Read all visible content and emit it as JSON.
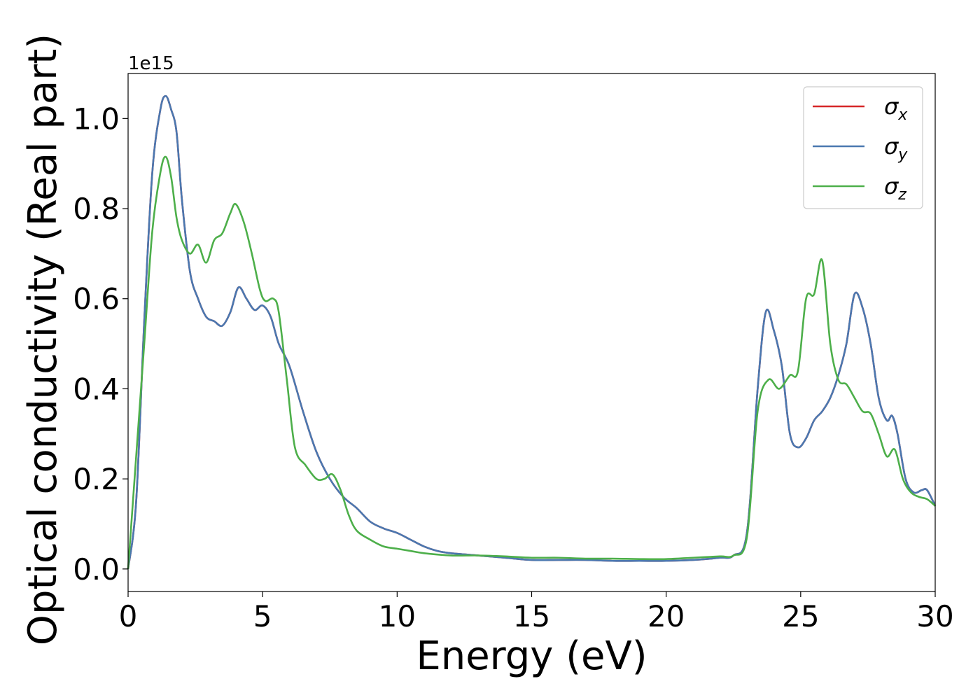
{
  "chart_data": {
    "type": "line",
    "xlabel": "Energy (eV)",
    "ylabel": "Optical conductivity (Real part)",
    "y_offset_label": "1e15",
    "y_scale": 1000000000000000.0,
    "xlim": [
      0,
      30
    ],
    "ylim": [
      -0.05,
      1.1
    ],
    "x_ticks": [
      0,
      5,
      10,
      15,
      20,
      25,
      30
    ],
    "x_tick_labels": [
      "0",
      "5",
      "10",
      "15",
      "20",
      "25",
      "30"
    ],
    "y_ticks": [
      0.0,
      0.2,
      0.4,
      0.6,
      0.8,
      1.0
    ],
    "y_tick_labels": [
      "0.0",
      "0.2",
      "0.4",
      "0.6",
      "0.8",
      "1.0"
    ],
    "grid": false,
    "legend_position": "top-right",
    "series": [
      {
        "name": "σx",
        "symbol": "σ",
        "subscript": "x",
        "color": "#d62728",
        "x": [
          0,
          0.3,
          0.6,
          0.9,
          1.2,
          1.4,
          1.6,
          1.8,
          2.0,
          2.3,
          2.6,
          2.9,
          3.2,
          3.5,
          3.8,
          4.1,
          4.4,
          4.7,
          5.0,
          5.3,
          5.6,
          6.0,
          6.5,
          7.0,
          7.5,
          8.0,
          8.5,
          9.0,
          9.5,
          10.0,
          10.5,
          11.0,
          11.5,
          12.0,
          13.0,
          14.0,
          15.0,
          16.0,
          17.0,
          18.0,
          19.0,
          20.0,
          21.0,
          22.0,
          22.5,
          23.0,
          23.4,
          23.7,
          24.0,
          24.3,
          24.6,
          24.9,
          25.2,
          25.5,
          25.8,
          26.1,
          26.4,
          26.7,
          27.0,
          27.3,
          27.6,
          27.9,
          28.2,
          28.4,
          28.6,
          28.9,
          29.2,
          29.5,
          29.7,
          30.0
        ],
        "y": [
          0.0,
          0.15,
          0.55,
          0.88,
          1.02,
          1.05,
          1.02,
          0.97,
          0.82,
          0.66,
          0.6,
          0.56,
          0.55,
          0.54,
          0.57,
          0.625,
          0.6,
          0.575,
          0.585,
          0.56,
          0.5,
          0.45,
          0.35,
          0.26,
          0.2,
          0.16,
          0.135,
          0.105,
          0.09,
          0.08,
          0.065,
          0.05,
          0.04,
          0.035,
          0.03,
          0.025,
          0.02,
          0.02,
          0.02,
          0.018,
          0.018,
          0.018,
          0.02,
          0.025,
          0.03,
          0.08,
          0.4,
          0.57,
          0.53,
          0.45,
          0.3,
          0.27,
          0.29,
          0.33,
          0.35,
          0.38,
          0.43,
          0.5,
          0.61,
          0.58,
          0.5,
          0.38,
          0.33,
          0.34,
          0.3,
          0.2,
          0.17,
          0.175,
          0.175,
          0.14
        ]
      },
      {
        "name": "σy",
        "symbol": "σ",
        "subscript": "y",
        "color": "#4a78b0",
        "x": [
          0,
          0.3,
          0.6,
          0.9,
          1.2,
          1.4,
          1.6,
          1.8,
          2.0,
          2.3,
          2.6,
          2.9,
          3.2,
          3.5,
          3.8,
          4.1,
          4.4,
          4.7,
          5.0,
          5.3,
          5.6,
          6.0,
          6.5,
          7.0,
          7.5,
          8.0,
          8.5,
          9.0,
          9.5,
          10.0,
          10.5,
          11.0,
          11.5,
          12.0,
          13.0,
          14.0,
          15.0,
          16.0,
          17.0,
          18.0,
          19.0,
          20.0,
          21.0,
          22.0,
          22.5,
          23.0,
          23.4,
          23.7,
          24.0,
          24.3,
          24.6,
          24.9,
          25.2,
          25.5,
          25.8,
          26.1,
          26.4,
          26.7,
          27.0,
          27.3,
          27.6,
          27.9,
          28.2,
          28.4,
          28.6,
          28.9,
          29.2,
          29.5,
          29.7,
          30.0
        ],
        "y": [
          0.0,
          0.15,
          0.55,
          0.88,
          1.02,
          1.05,
          1.02,
          0.97,
          0.82,
          0.66,
          0.6,
          0.56,
          0.55,
          0.54,
          0.57,
          0.625,
          0.6,
          0.575,
          0.585,
          0.56,
          0.5,
          0.45,
          0.35,
          0.26,
          0.2,
          0.16,
          0.135,
          0.105,
          0.09,
          0.08,
          0.065,
          0.05,
          0.04,
          0.035,
          0.03,
          0.025,
          0.02,
          0.02,
          0.02,
          0.018,
          0.018,
          0.018,
          0.02,
          0.025,
          0.03,
          0.08,
          0.4,
          0.57,
          0.53,
          0.45,
          0.3,
          0.27,
          0.29,
          0.33,
          0.35,
          0.38,
          0.43,
          0.5,
          0.61,
          0.58,
          0.5,
          0.38,
          0.33,
          0.34,
          0.3,
          0.2,
          0.17,
          0.175,
          0.175,
          0.14
        ]
      },
      {
        "name": "σz",
        "symbol": "σ",
        "subscript": "z",
        "color": "#4daf4a",
        "x": [
          0,
          0.3,
          0.6,
          0.9,
          1.2,
          1.4,
          1.6,
          1.8,
          2.0,
          2.3,
          2.6,
          2.9,
          3.2,
          3.5,
          3.8,
          4.0,
          4.3,
          4.6,
          4.9,
          5.1,
          5.4,
          5.6,
          5.9,
          6.2,
          6.6,
          7.0,
          7.3,
          7.6,
          7.9,
          8.2,
          8.5,
          9.0,
          9.5,
          10.0,
          10.5,
          11.0,
          12.0,
          13.0,
          14.0,
          15.0,
          16.0,
          17.0,
          18.0,
          19.0,
          20.0,
          21.0,
          22.0,
          22.5,
          23.0,
          23.4,
          23.8,
          24.2,
          24.6,
          24.9,
          25.2,
          25.5,
          25.8,
          26.1,
          26.4,
          26.7,
          27.0,
          27.3,
          27.6,
          27.9,
          28.2,
          28.5,
          28.8,
          29.1,
          29.4,
          29.7,
          30.0
        ],
        "y": [
          0.0,
          0.25,
          0.5,
          0.75,
          0.88,
          0.915,
          0.87,
          0.78,
          0.73,
          0.7,
          0.72,
          0.68,
          0.73,
          0.745,
          0.79,
          0.81,
          0.77,
          0.7,
          0.62,
          0.595,
          0.6,
          0.57,
          0.42,
          0.27,
          0.23,
          0.2,
          0.2,
          0.21,
          0.175,
          0.12,
          0.085,
          0.065,
          0.05,
          0.045,
          0.04,
          0.035,
          0.03,
          0.03,
          0.028,
          0.025,
          0.025,
          0.023,
          0.023,
          0.022,
          0.022,
          0.025,
          0.028,
          0.03,
          0.07,
          0.35,
          0.42,
          0.4,
          0.43,
          0.44,
          0.6,
          0.61,
          0.685,
          0.5,
          0.42,
          0.41,
          0.38,
          0.35,
          0.345,
          0.3,
          0.25,
          0.265,
          0.2,
          0.17,
          0.16,
          0.155,
          0.14
        ]
      }
    ]
  }
}
